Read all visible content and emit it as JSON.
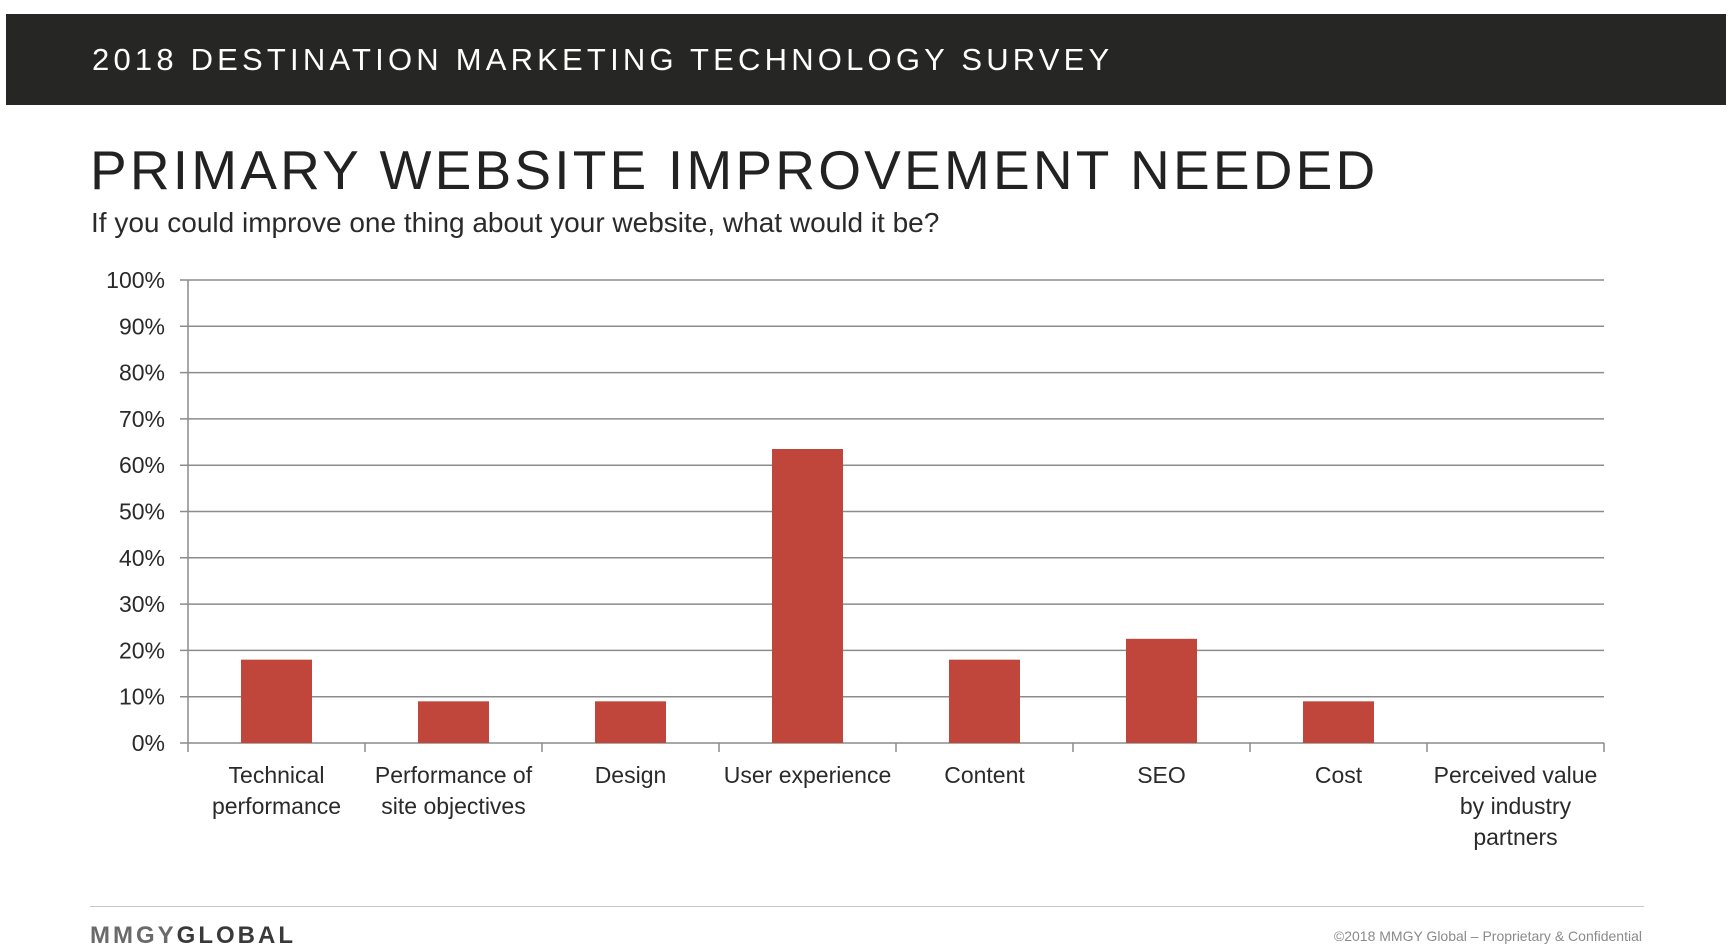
{
  "header": {
    "banner": "2018 DESTINATION MARKETING TECHNOLOGY SURVEY",
    "title": "PRIMARY WEBSITE IMPROVEMENT NEEDED",
    "subtitle": "If you could improve one thing about your website, what would it be?"
  },
  "footer": {
    "brand_part1": "MMGY",
    "brand_part2": "GLOBAL",
    "copyright": "©2018 MMGY Global – Proprietary & Confidential"
  },
  "colors": {
    "bar": "#c0453a",
    "banner_bg": "#262624",
    "grid": "#8c8c8c"
  },
  "chart_data": {
    "type": "bar",
    "title": "PRIMARY WEBSITE IMPROVEMENT NEEDED",
    "xlabel": "",
    "ylabel": "",
    "categories": [
      [
        "Technical",
        "performance"
      ],
      [
        "Performance of",
        "site objectives"
      ],
      [
        "Design"
      ],
      [
        "User experience"
      ],
      [
        "Content"
      ],
      [
        "SEO"
      ],
      [
        "Cost"
      ],
      [
        "Perceived value",
        "by industry",
        "partners"
      ]
    ],
    "values": [
      18,
      9,
      9,
      63.5,
      18,
      22.5,
      9,
      0
    ],
    "ylim": [
      0,
      100
    ],
    "yticks": [
      "0%",
      "10%",
      "20%",
      "30%",
      "40%",
      "50%",
      "60%",
      "70%",
      "80%",
      "90%",
      "100%"
    ],
    "grid": true,
    "legend": "none"
  }
}
